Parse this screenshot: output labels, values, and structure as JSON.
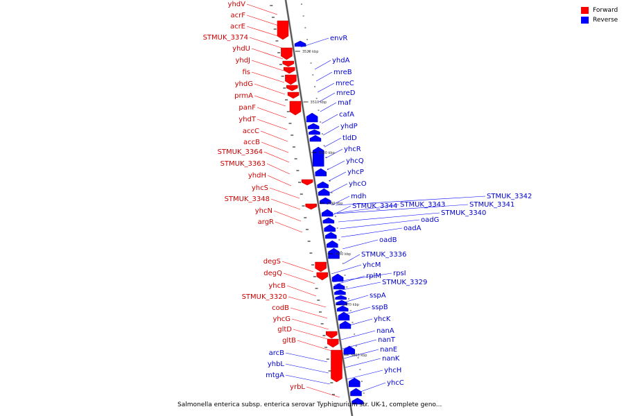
{
  "legend": {
    "items": [
      {
        "label": "Forward",
        "color": "#ff0000"
      },
      {
        "label": "Reverse",
        "color": "#0000ff"
      }
    ]
  },
  "caption": "Salmonella enterica subsp. enterica serovar Typhimurium str. UK-1, complete geno...",
  "axis": {
    "ticks": [
      {
        "label": "3520 kbp",
        "kbp": 3520
      },
      {
        "label": "3510 kbp",
        "kbp": 3510
      },
      {
        "label": "3500 kbp",
        "kbp": 3500
      },
      {
        "label": "3490 kbp",
        "kbp": 3490
      },
      {
        "label": "3480 kbp",
        "kbp": 3480
      },
      {
        "label": "3470 kbp",
        "kbp": 3470
      },
      {
        "label": "3460 kbp",
        "kbp": 3460
      }
    ]
  },
  "genes": {
    "forward": [
      "yhdV",
      "acrF",
      "acrE",
      "STMUK_3374",
      "yhdU",
      "yhdJ",
      "fis",
      "yhdG",
      "prmA",
      "panF",
      "yhdT",
      "accC",
      "accB",
      "STMUK_3364",
      "STMUK_3363",
      "yhdH",
      "yhcS",
      "STMUK_3348",
      "yhcN",
      "argR",
      "degS",
      "degQ",
      "yhcB",
      "STMUK_3320",
      "codB",
      "yhcG",
      "gltD",
      "gltB",
      "yrbL"
    ],
    "reverse": [
      "envR",
      "yhdA",
      "mreB",
      "mreC",
      "mreD",
      "maf",
      "cafA",
      "yhdP",
      "tldD",
      "yhcR",
      "yhcQ",
      "yhcP",
      "yhcO",
      "mdh",
      "STMUK_3344",
      "STMUK_3343",
      "STMUK_3342",
      "STMUK_3341",
      "STMUK_3340",
      "oadG",
      "oadA",
      "oadB",
      "STMUK_3336",
      "yhcM",
      "rpsI",
      "rplM",
      "STMUK_3329",
      "sspA",
      "sspB",
      "yhcK",
      "nanA",
      "nanT",
      "nanE",
      "nanK",
      "yhcH",
      "yhcC",
      "arcB",
      "yhbL",
      "mtgA"
    ]
  }
}
